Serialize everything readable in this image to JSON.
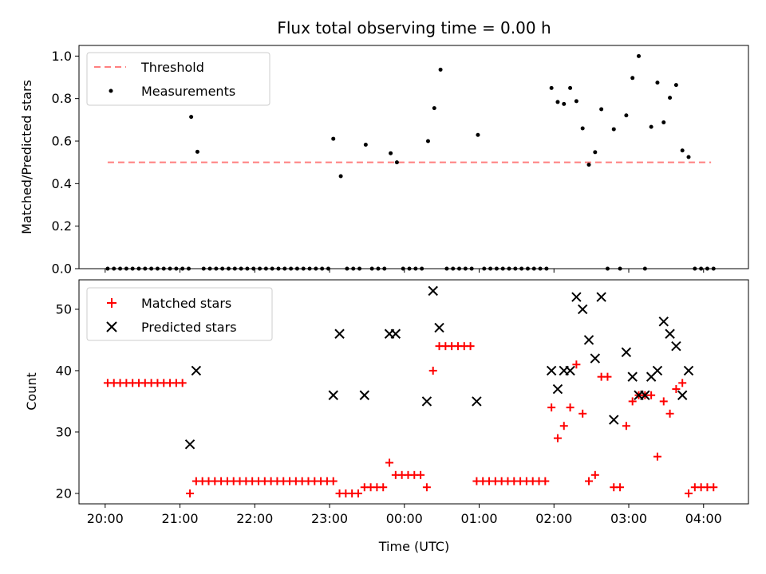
{
  "chart_data": [
    {
      "type": "scatter",
      "title": "Flux total observing time = 0.00 h",
      "xlabel": "",
      "ylabel": "Matched/Predicted stars",
      "ylim": [
        0,
        1.05
      ],
      "yticks": [
        0.0,
        0.2,
        0.4,
        0.6,
        0.8,
        1.0
      ],
      "ytick_labels": [
        "0.0",
        "0.2",
        "0.4",
        "0.6",
        "0.8",
        "1.0"
      ],
      "grid": false,
      "legend": "upper-left",
      "threshold": {
        "name": "Threshold",
        "value": 0.5,
        "x_start": "20:02",
        "x_end": "04:06",
        "color": "#ff7f7f"
      },
      "series": [
        {
          "name": "Measurements",
          "color": "#000000",
          "points": [
            [
              "20:02",
              0
            ],
            [
              "20:07",
              0
            ],
            [
              "20:12",
              0
            ],
            [
              "20:17",
              0
            ],
            [
              "20:22",
              0
            ],
            [
              "20:27",
              0
            ],
            [
              "20:32",
              0
            ],
            [
              "20:37",
              0
            ],
            [
              "20:42",
              0
            ],
            [
              "20:47",
              0
            ],
            [
              "20:52",
              0
            ],
            [
              "20:57",
              0
            ],
            [
              "21:02",
              0
            ],
            [
              "21:07",
              0
            ],
            [
              "21:09",
              0.714
            ],
            [
              "21:14",
              0.55
            ],
            [
              "21:19",
              0
            ],
            [
              "21:24",
              0
            ],
            [
              "21:29",
              0
            ],
            [
              "21:34",
              0
            ],
            [
              "21:39",
              0
            ],
            [
              "21:44",
              0
            ],
            [
              "21:49",
              0
            ],
            [
              "21:54",
              0
            ],
            [
              "21:59",
              0
            ],
            [
              "22:04",
              0
            ],
            [
              "22:09",
              0
            ],
            [
              "22:14",
              0
            ],
            [
              "22:19",
              0
            ],
            [
              "22:24",
              0
            ],
            [
              "22:29",
              0
            ],
            [
              "22:34",
              0
            ],
            [
              "22:39",
              0
            ],
            [
              "22:44",
              0
            ],
            [
              "22:49",
              0
            ],
            [
              "22:54",
              0
            ],
            [
              "22:59",
              0
            ],
            [
              "23:03",
              0.611
            ],
            [
              "23:09",
              0.435
            ],
            [
              "23:14",
              0
            ],
            [
              "23:19",
              0
            ],
            [
              "23:24",
              0
            ],
            [
              "23:29",
              0.583
            ],
            [
              "23:34",
              0
            ],
            [
              "23:39",
              0
            ],
            [
              "23:44",
              0
            ],
            [
              "23:49",
              0.543
            ],
            [
              "23:54",
              0.5
            ],
            [
              "23:59",
              0
            ],
            [
              "00:04",
              0
            ],
            [
              "00:09",
              0
            ],
            [
              "00:14",
              0
            ],
            [
              "00:19",
              0.6
            ],
            [
              "00:24",
              0.755
            ],
            [
              "00:29",
              0.936
            ],
            [
              "00:34",
              0
            ],
            [
              "00:39",
              0
            ],
            [
              "00:44",
              0
            ],
            [
              "00:49",
              0
            ],
            [
              "00:54",
              0
            ],
            [
              "00:59",
              0.629
            ],
            [
              "01:04",
              0
            ],
            [
              "01:09",
              0
            ],
            [
              "01:14",
              0
            ],
            [
              "01:19",
              0
            ],
            [
              "01:24",
              0
            ],
            [
              "01:29",
              0
            ],
            [
              "01:34",
              0
            ],
            [
              "01:39",
              0
            ],
            [
              "01:44",
              0
            ],
            [
              "01:49",
              0
            ],
            [
              "01:54",
              0
            ],
            [
              "01:58",
              0.85
            ],
            [
              "02:03",
              0.784
            ],
            [
              "02:08",
              0.775
            ],
            [
              "02:13",
              0.85
            ],
            [
              "02:18",
              0.788
            ],
            [
              "02:23",
              0.66
            ],
            [
              "02:28",
              0.489
            ],
            [
              "02:33",
              0.548
            ],
            [
              "02:38",
              0.75
            ],
            [
              "02:43",
              0
            ],
            [
              "02:48",
              0.656
            ],
            [
              "02:53",
              0
            ],
            [
              "02:58",
              0.721
            ],
            [
              "03:03",
              0.897
            ],
            [
              "03:08",
              1.0
            ],
            [
              "03:13",
              0
            ],
            [
              "03:18",
              0.667
            ],
            [
              "03:23",
              0.875
            ],
            [
              "03:28",
              0.688
            ],
            [
              "03:33",
              0.804
            ],
            [
              "03:38",
              0.864
            ],
            [
              "03:43",
              0.556
            ],
            [
              "03:48",
              0.525
            ],
            [
              "03:53",
              0
            ],
            [
              "03:58",
              0
            ],
            [
              "04:03",
              0
            ],
            [
              "04:08",
              0
            ]
          ]
        }
      ]
    },
    {
      "type": "scatter",
      "title": "",
      "xlabel": "Time (UTC)",
      "ylabel": "Count",
      "ylim": [
        18.3,
        54.8
      ],
      "yticks": [
        20,
        30,
        40,
        50
      ],
      "ytick_labels": [
        "20",
        "30",
        "40",
        "50"
      ],
      "xlim": [
        "19:39",
        "04:36"
      ],
      "xticks": [
        "20:00",
        "21:00",
        "22:00",
        "23:00",
        "00:00",
        "01:00",
        "02:00",
        "03:00",
        "04:00"
      ],
      "xtick_labels": [
        "20:00",
        "21:00",
        "22:00",
        "23:00",
        "00:00",
        "01:00",
        "02:00",
        "03:00",
        "04:00"
      ],
      "grid": false,
      "legend": "upper-left",
      "series": [
        {
          "name": "Matched stars",
          "marker": "plus",
          "color": "#ff0000",
          "points": [
            [
              "20:02",
              38
            ],
            [
              "20:07",
              38
            ],
            [
              "20:12",
              38
            ],
            [
              "20:17",
              38
            ],
            [
              "20:22",
              38
            ],
            [
              "20:27",
              38
            ],
            [
              "20:32",
              38
            ],
            [
              "20:37",
              38
            ],
            [
              "20:42",
              38
            ],
            [
              "20:47",
              38
            ],
            [
              "20:52",
              38
            ],
            [
              "20:57",
              38
            ],
            [
              "21:02",
              38
            ],
            [
              "21:08",
              20
            ],
            [
              "21:13",
              22
            ],
            [
              "21:18",
              22
            ],
            [
              "21:23",
              22
            ],
            [
              "21:28",
              22
            ],
            [
              "21:33",
              22
            ],
            [
              "21:38",
              22
            ],
            [
              "21:43",
              22
            ],
            [
              "21:48",
              22
            ],
            [
              "21:53",
              22
            ],
            [
              "21:58",
              22
            ],
            [
              "22:03",
              22
            ],
            [
              "22:08",
              22
            ],
            [
              "22:13",
              22
            ],
            [
              "22:18",
              22
            ],
            [
              "22:23",
              22
            ],
            [
              "22:28",
              22
            ],
            [
              "22:33",
              22
            ],
            [
              "22:38",
              22
            ],
            [
              "22:43",
              22
            ],
            [
              "22:48",
              22
            ],
            [
              "22:53",
              22
            ],
            [
              "22:58",
              22
            ],
            [
              "23:03",
              22
            ],
            [
              "23:08",
              20
            ],
            [
              "23:13",
              20
            ],
            [
              "23:18",
              20
            ],
            [
              "23:23",
              20
            ],
            [
              "23:28",
              21
            ],
            [
              "23:33",
              21
            ],
            [
              "23:38",
              21
            ],
            [
              "23:43",
              21
            ],
            [
              "23:48",
              25
            ],
            [
              "23:53",
              23
            ],
            [
              "23:58",
              23
            ],
            [
              "00:03",
              23
            ],
            [
              "00:08",
              23
            ],
            [
              "00:13",
              23
            ],
            [
              "00:18",
              21
            ],
            [
              "00:23",
              40
            ],
            [
              "00:28",
              44
            ],
            [
              "00:33",
              44
            ],
            [
              "00:38",
              44
            ],
            [
              "00:43",
              44
            ],
            [
              "00:48",
              44
            ],
            [
              "00:53",
              44
            ],
            [
              "00:58",
              22
            ],
            [
              "01:03",
              22
            ],
            [
              "01:08",
              22
            ],
            [
              "01:13",
              22
            ],
            [
              "01:18",
              22
            ],
            [
              "01:23",
              22
            ],
            [
              "01:28",
              22
            ],
            [
              "01:33",
              22
            ],
            [
              "01:38",
              22
            ],
            [
              "01:43",
              22
            ],
            [
              "01:48",
              22
            ],
            [
              "01:53",
              22
            ],
            [
              "01:58",
              34
            ],
            [
              "02:03",
              29
            ],
            [
              "02:08",
              31
            ],
            [
              "02:13",
              34
            ],
            [
              "02:18",
              41
            ],
            [
              "02:23",
              33
            ],
            [
              "02:28",
              22
            ],
            [
              "02:33",
              23
            ],
            [
              "02:38",
              39
            ],
            [
              "02:43",
              39
            ],
            [
              "02:48",
              21
            ],
            [
              "02:53",
              21
            ],
            [
              "02:58",
              31
            ],
            [
              "03:03",
              35
            ],
            [
              "03:08",
              36
            ],
            [
              "03:13",
              36
            ],
            [
              "03:18",
              36
            ],
            [
              "03:23",
              26
            ],
            [
              "03:28",
              35
            ],
            [
              "03:33",
              33
            ],
            [
              "03:38",
              37
            ],
            [
              "03:43",
              38
            ],
            [
              "03:48",
              20
            ],
            [
              "03:53",
              21
            ],
            [
              "03:58",
              21
            ],
            [
              "04:03",
              21
            ],
            [
              "04:08",
              21
            ]
          ]
        },
        {
          "name": "Predicted stars",
          "marker": "x",
          "color": "#000000",
          "points": [
            [
              "21:08",
              28
            ],
            [
              "21:13",
              40
            ],
            [
              "23:03",
              36
            ],
            [
              "23:08",
              46
            ],
            [
              "23:28",
              36
            ],
            [
              "23:48",
              46
            ],
            [
              "23:53",
              46
            ],
            [
              "00:18",
              35
            ],
            [
              "00:23",
              53
            ],
            [
              "00:28",
              47
            ],
            [
              "00:58",
              35
            ],
            [
              "01:58",
              40
            ],
            [
              "02:03",
              37
            ],
            [
              "02:08",
              40
            ],
            [
              "02:13",
              40
            ],
            [
              "02:18",
              52
            ],
            [
              "02:23",
              50
            ],
            [
              "02:28",
              45
            ],
            [
              "02:33",
              42
            ],
            [
              "02:38",
              52
            ],
            [
              "02:48",
              32
            ],
            [
              "02:58",
              43
            ],
            [
              "03:03",
              39
            ],
            [
              "03:08",
              36
            ],
            [
              "03:13",
              36
            ],
            [
              "03:18",
              39
            ],
            [
              "03:23",
              40
            ],
            [
              "03:28",
              48
            ],
            [
              "03:33",
              46
            ],
            [
              "03:38",
              44
            ],
            [
              "03:43",
              36
            ],
            [
              "03:48",
              40
            ]
          ]
        }
      ]
    }
  ]
}
